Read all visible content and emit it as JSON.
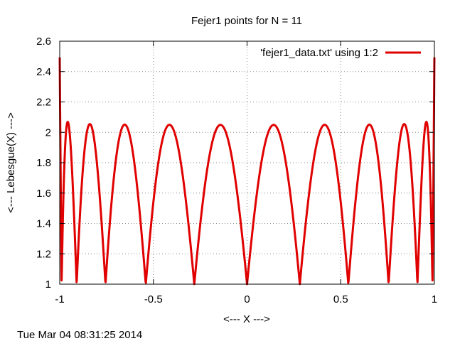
{
  "chart_data": {
    "type": "line",
    "title": "Fejer1 points for N = 11",
    "xlabel": "<--- X --->",
    "ylabel": "<--- Lebesgue(X) --->",
    "xlim": [
      -1,
      1
    ],
    "ylim": [
      1,
      2.6
    ],
    "x_ticks": [
      "-1",
      "-0.5",
      "0",
      "0.5",
      "1"
    ],
    "y_ticks": [
      "1",
      "1.2",
      "1.4",
      "1.6",
      "1.8",
      "2",
      "2.2",
      "2.4",
      "2.6"
    ],
    "grid": true,
    "legend_position": "top-right",
    "series": [
      {
        "name": "'fejer1_data.txt' using 1:2",
        "color": "#e00000",
        "nodes": [
          -0.9898,
          -0.9096,
          -0.7557,
          -0.5406,
          -0.2817,
          0.0,
          0.2817,
          0.5406,
          0.7557,
          0.9096,
          0.9898
        ],
        "peaks": [
          {
            "x": -0.955,
            "y": 2.07
          },
          {
            "x": -0.84,
            "y": 2.05
          },
          {
            "x": -0.655,
            "y": 2.05
          },
          {
            "x": -0.42,
            "y": 2.05
          },
          {
            "x": -0.145,
            "y": 2.05
          },
          {
            "x": 0.145,
            "y": 2.05
          },
          {
            "x": 0.41,
            "y": 2.05
          },
          {
            "x": 0.655,
            "y": 2.05
          },
          {
            "x": 0.835,
            "y": 2.05
          },
          {
            "x": 0.955,
            "y": 2.07
          }
        ],
        "endpoints": [
          {
            "x": -1,
            "y": 2.49
          },
          {
            "x": 1,
            "y": 2.49
          }
        ]
      }
    ]
  },
  "footer": {
    "timestamp": "Tue Mar 04 08:31:25 2014"
  }
}
